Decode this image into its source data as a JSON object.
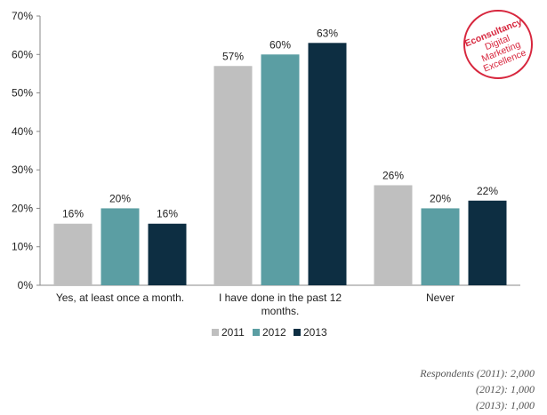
{
  "chart_data": {
    "type": "bar",
    "categories": [
      "Yes, at least once a month.",
      "I have done in the past 12 months.",
      "Never"
    ],
    "category_lines": [
      [
        "Yes, at least once a month."
      ],
      [
        "I have done in the past 12",
        "months."
      ],
      [
        "Never"
      ]
    ],
    "series": [
      {
        "name": "2011",
        "values": [
          16,
          57,
          26
        ],
        "labels": [
          "16%",
          "57%",
          "26%"
        ],
        "color": "#bfbfbf"
      },
      {
        "name": "2012",
        "values": [
          20,
          60,
          20
        ],
        "labels": [
          "20%",
          "60%",
          "20%"
        ],
        "color": "#5b9ea3"
      },
      {
        "name": "2013",
        "values": [
          16,
          63,
          22
        ],
        "labels": [
          "16%",
          "63%",
          "22%"
        ],
        "color": "#0d2e42"
      }
    ],
    "ylim": [
      0,
      70
    ],
    "yticks": [
      "0%",
      "10%",
      "20%",
      "30%",
      "40%",
      "50%",
      "60%",
      "70%"
    ],
    "grid": false,
    "legend_position": "bottom"
  },
  "logo": {
    "brand": "Econsultancy",
    "lines": [
      "Digital",
      "Marketing",
      "Excellence"
    ],
    "color": "#d7263d"
  },
  "notes": {
    "line1": "Respondents (2011): 2,000",
    "line2": "(2012): 1,000",
    "line3": "(2013): 1,000"
  }
}
